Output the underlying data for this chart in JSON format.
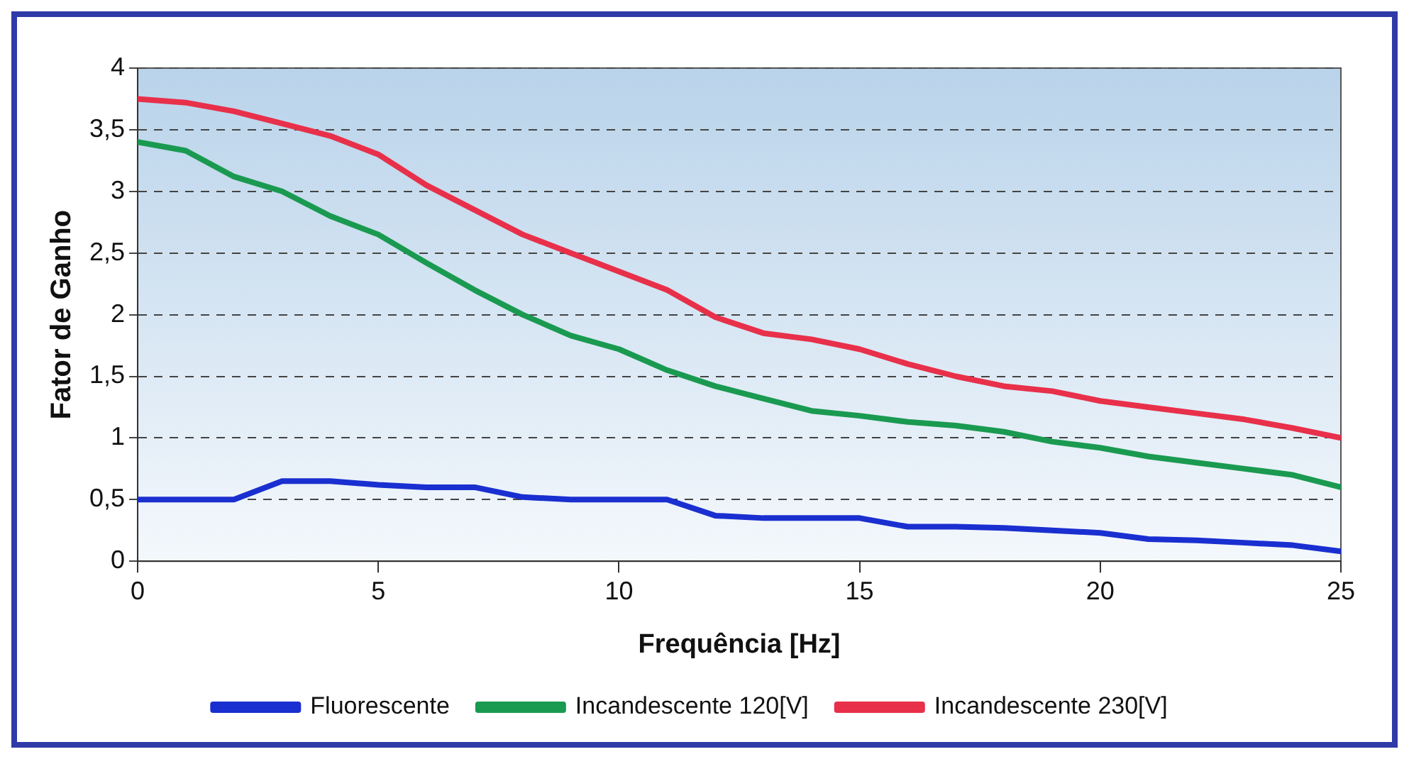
{
  "chart_data": {
    "type": "line",
    "xlabel": "Frequência [Hz]",
    "ylabel": "Fator de Ganho",
    "x": [
      0,
      1,
      2,
      3,
      4,
      5,
      6,
      7,
      8,
      9,
      10,
      11,
      12,
      13,
      14,
      15,
      16,
      17,
      18,
      19,
      20,
      21,
      22,
      23,
      24,
      25
    ],
    "series": [
      {
        "name": "Fluorescente",
        "color": "#1a2fd0",
        "values": [
          0.5,
          0.5,
          0.5,
          0.65,
          0.65,
          0.62,
          0.6,
          0.6,
          0.52,
          0.5,
          0.5,
          0.5,
          0.37,
          0.35,
          0.35,
          0.35,
          0.28,
          0.28,
          0.27,
          0.25,
          0.23,
          0.18,
          0.17,
          0.15,
          0.13,
          0.08
        ]
      },
      {
        "name": "Incandescente 120[V]",
        "color": "#1a9a50",
        "values": [
          3.4,
          3.33,
          3.12,
          3.0,
          2.8,
          2.65,
          2.42,
          2.2,
          2.0,
          1.83,
          1.72,
          1.55,
          1.42,
          1.32,
          1.22,
          1.18,
          1.13,
          1.1,
          1.05,
          0.97,
          0.92,
          0.85,
          0.8,
          0.75,
          0.7,
          0.6
        ]
      },
      {
        "name": "Incandescente 230[V]",
        "color": "#e8304a",
        "values": [
          3.75,
          3.72,
          3.65,
          3.55,
          3.45,
          3.3,
          3.05,
          2.85,
          2.65,
          2.5,
          2.35,
          2.2,
          1.98,
          1.85,
          1.8,
          1.72,
          1.6,
          1.5,
          1.42,
          1.38,
          1.3,
          1.25,
          1.2,
          1.15,
          1.08,
          1.0
        ]
      }
    ],
    "xlim": [
      0,
      25
    ],
    "xticks": [
      0,
      5,
      10,
      15,
      20,
      25
    ],
    "ylim": [
      0,
      4
    ],
    "yticks": [
      0,
      {
        "value": 0.5,
        "label": "0,5"
      },
      1,
      {
        "value": 1.5,
        "label": "1,5"
      },
      2,
      {
        "value": 2.5,
        "label": "2,5"
      },
      3,
      {
        "value": 3.5,
        "label": "3,5"
      },
      4
    ],
    "grid": "y",
    "legend": "bottom",
    "marker": "none",
    "line_style": "solid"
  }
}
